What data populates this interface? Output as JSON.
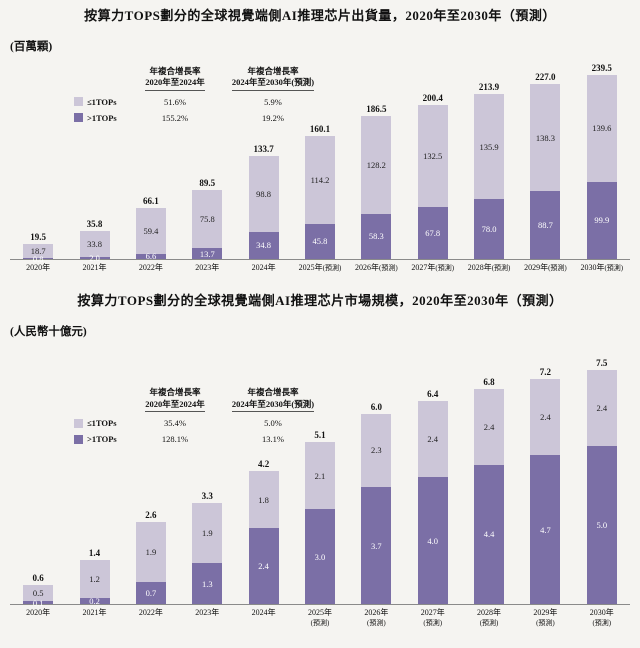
{
  "colors": {
    "background": "#f5f4f1",
    "axis": "#8a8a8a",
    "le1tops": "#ccc6d8",
    "gt1tops": "#7b6fa6"
  },
  "chart_data": [
    {
      "type": "bar",
      "stacked": true,
      "title": "按算力TOPS劃分的全球視覺端側AI推理芯片出貨量，2020年至2030年（預測）",
      "unit": "(百萬顆)",
      "ylabel": "百萬顆",
      "ylim": [
        0,
        260
      ],
      "legend_position": "upper-left",
      "grid": false,
      "cagr": {
        "header1": [
          "年複合增長率",
          "2020年至2024年"
        ],
        "header2": [
          "年複合增長率",
          "2024年至2030年(預測)"
        ],
        "rows": [
          {
            "label": "≤1TOPs",
            "v1": "51.6%",
            "v2": "5.9%"
          },
          {
            "label": ">1TOPs",
            "v1": "155.2%",
            "v2": "19.2%"
          }
        ]
      },
      "categories": [
        {
          "label": "2020年",
          "note": ""
        },
        {
          "label": "2021年",
          "note": ""
        },
        {
          "label": "2022年",
          "note": ""
        },
        {
          "label": "2023年",
          "note": ""
        },
        {
          "label": "2024年",
          "note": ""
        },
        {
          "label": "2025年",
          "note": "(預測)"
        },
        {
          "label": "2026年",
          "note": "(預測)"
        },
        {
          "label": "2027年",
          "note": "(預測)"
        },
        {
          "label": "2028年",
          "note": "(預測)"
        },
        {
          "label": "2029年",
          "note": "(預測)"
        },
        {
          "label": "2030年",
          "note": "(預測)"
        }
      ],
      "series": [
        {
          "name": ">1TOPs",
          "color": "#7b6fa6",
          "values": [
            0.8,
            2.0,
            6.6,
            13.7,
            34.8,
            45.8,
            58.3,
            67.8,
            78.0,
            88.7,
            99.9
          ]
        },
        {
          "name": "≤1TOPs",
          "color": "#ccc6d8",
          "values": [
            18.7,
            33.8,
            59.4,
            75.8,
            98.8,
            114.2,
            128.2,
            132.5,
            135.9,
            138.3,
            139.6
          ]
        }
      ],
      "totals": [
        19.5,
        35.8,
        66.1,
        89.5,
        133.7,
        160.1,
        186.5,
        200.4,
        213.9,
        227.0,
        239.5
      ]
    },
    {
      "type": "bar",
      "stacked": true,
      "title": "按算力TOPS劃分的全球視覺端側AI推理芯片市場規模，2020年至2030年（預測）",
      "unit": "(人民幣十億元)",
      "ylabel": "人民幣十億元",
      "ylim": [
        0,
        8.2
      ],
      "legend_position": "upper-left",
      "grid": false,
      "cagr": {
        "header1": [
          "年複合增長率",
          "2020年至2024年"
        ],
        "header2": [
          "年複合增長率",
          "2024年至2030年(預測)"
        ],
        "rows": [
          {
            "label": "≤1TOPs",
            "v1": "35.4%",
            "v2": "5.0%"
          },
          {
            "label": ">1TOPs",
            "v1": "128.1%",
            "v2": "13.1%"
          }
        ]
      },
      "categories": [
        {
          "label": "2020年",
          "note": ""
        },
        {
          "label": "2021年",
          "note": ""
        },
        {
          "label": "2022年",
          "note": ""
        },
        {
          "label": "2023年",
          "note": ""
        },
        {
          "label": "2024年",
          "note": ""
        },
        {
          "label": "2025年",
          "note": "(預測)"
        },
        {
          "label": "2026年",
          "note": "(預測)"
        },
        {
          "label": "2027年",
          "note": "(預測)"
        },
        {
          "label": "2028年",
          "note": "(預測)"
        },
        {
          "label": "2029年",
          "note": "(預測)"
        },
        {
          "label": "2030年",
          "note": "(預測)"
        }
      ],
      "series": [
        {
          "name": ">1TOPs",
          "color": "#7b6fa6",
          "values": [
            0.1,
            0.2,
            0.7,
            1.3,
            2.4,
            3.0,
            3.7,
            4.0,
            4.4,
            4.7,
            5.0
          ]
        },
        {
          "name": "≤1TOPs",
          "color": "#ccc6d8",
          "values": [
            0.5,
            1.2,
            1.9,
            1.9,
            1.8,
            2.1,
            2.3,
            2.4,
            2.4,
            2.4,
            2.4
          ]
        }
      ],
      "totals": [
        0.6,
        1.4,
        2.6,
        3.3,
        4.2,
        5.1,
        6.0,
        6.4,
        6.8,
        7.2,
        7.5
      ]
    }
  ]
}
